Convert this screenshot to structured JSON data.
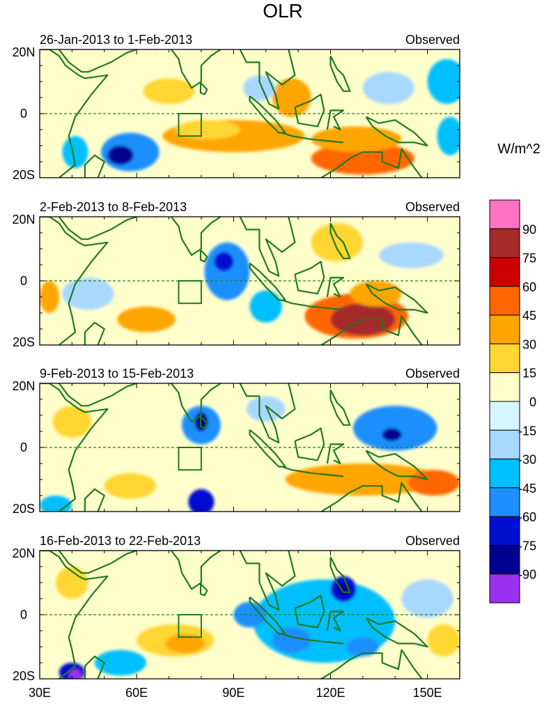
{
  "figure": {
    "title": "OLR",
    "units_label": "W/m^2",
    "region": {
      "lon_min": 30,
      "lon_max": 160,
      "lat_min": -20,
      "lat_max": 20
    },
    "lat_labels": [
      "20N",
      "0",
      "20S"
    ],
    "lon_ticks": [
      {
        "lon": 30,
        "label": "30E"
      },
      {
        "lon": 60,
        "label": "60E"
      },
      {
        "lon": 90,
        "label": "90E"
      },
      {
        "lon": 120,
        "label": "120E"
      },
      {
        "lon": 150,
        "label": "150E"
      }
    ],
    "box_region": {
      "lon_min": 73,
      "lon_max": 80,
      "lat_min": -7,
      "lat_max": 0
    },
    "coast_color": "#1f7a1f",
    "equator_color": "#1f7a1f"
  },
  "panels": [
    {
      "period": "26-Jan-2013 to 1-Feb-2013",
      "tag": "Observed",
      "blobs": [
        {
          "lon": 58,
          "lat": -12,
          "rx": 9,
          "ry": 6,
          "v": -45
        },
        {
          "lon": 55,
          "lat": -13,
          "rx": 4,
          "ry": 3,
          "v": -75
        },
        {
          "lon": 41,
          "lat": -12,
          "rx": 4,
          "ry": 5,
          "v": -30
        },
        {
          "lon": 90,
          "lat": -7,
          "rx": 22,
          "ry": 5,
          "v": 30
        },
        {
          "lon": 82,
          "lat": -5,
          "rx": 10,
          "ry": 3,
          "v": 15
        },
        {
          "lon": 70,
          "lat": 7,
          "rx": 8,
          "ry": 4,
          "v": 15
        },
        {
          "lon": 108,
          "lat": 5,
          "rx": 6,
          "ry": 6,
          "v": 30
        },
        {
          "lon": 130,
          "lat": -14,
          "rx": 16,
          "ry": 5,
          "v": 45
        },
        {
          "lon": 128,
          "lat": -8,
          "rx": 14,
          "ry": 4,
          "v": 30
        },
        {
          "lon": 156,
          "lat": 10,
          "rx": 6,
          "ry": 7,
          "v": -30
        },
        {
          "lon": 157,
          "lat": -7,
          "rx": 4,
          "ry": 6,
          "v": -30
        },
        {
          "lon": 138,
          "lat": 8,
          "rx": 8,
          "ry": 5,
          "v": -15
        },
        {
          "lon": 98,
          "lat": 8,
          "rx": 5,
          "ry": 4,
          "v": -15
        }
      ]
    },
    {
      "period": "2-Feb-2013 to 8-Feb-2013",
      "tag": "Observed",
      "blobs": [
        {
          "lon": 128,
          "lat": -11,
          "rx": 16,
          "ry": 7,
          "v": 45
        },
        {
          "lon": 130,
          "lat": -12,
          "rx": 10,
          "ry": 5,
          "v": 75
        },
        {
          "lon": 134,
          "lat": -4,
          "rx": 8,
          "ry": 4,
          "v": 30
        },
        {
          "lon": 88,
          "lat": 3,
          "rx": 7,
          "ry": 9,
          "v": -45
        },
        {
          "lon": 87,
          "lat": 6,
          "rx": 3,
          "ry": 3,
          "v": -60
        },
        {
          "lon": 100,
          "lat": -8,
          "rx": 5,
          "ry": 5,
          "v": -30
        },
        {
          "lon": 63,
          "lat": -12,
          "rx": 9,
          "ry": 4,
          "v": 30
        },
        {
          "lon": 45,
          "lat": -4,
          "rx": 8,
          "ry": 5,
          "v": -15
        },
        {
          "lon": 33,
          "lat": -5,
          "rx": 3,
          "ry": 5,
          "v": 30
        },
        {
          "lon": 122,
          "lat": 12,
          "rx": 8,
          "ry": 6,
          "v": 15
        },
        {
          "lon": 145,
          "lat": 8,
          "rx": 10,
          "ry": 4,
          "v": -15
        }
      ]
    },
    {
      "period": "9-Feb-2013 to 15-Feb-2013",
      "tag": "Observed",
      "blobs": [
        {
          "lon": 140,
          "lat": 6,
          "rx": 13,
          "ry": 7,
          "v": -45
        },
        {
          "lon": 139,
          "lat": 4,
          "rx": 3,
          "ry": 2,
          "v": -75
        },
        {
          "lon": 80,
          "lat": 7,
          "rx": 6,
          "ry": 6,
          "v": -45
        },
        {
          "lon": 80,
          "lat": 8,
          "rx": 2,
          "ry": 3,
          "v": -75
        },
        {
          "lon": 80,
          "lat": -17,
          "rx": 4,
          "ry": 4,
          "v": -60
        },
        {
          "lon": 130,
          "lat": -10,
          "rx": 24,
          "ry": 5,
          "v": 30
        },
        {
          "lon": 152,
          "lat": -11,
          "rx": 8,
          "ry": 4,
          "v": 45
        },
        {
          "lon": 58,
          "lat": -12,
          "rx": 8,
          "ry": 4,
          "v": 15
        },
        {
          "lon": 40,
          "lat": 8,
          "rx": 6,
          "ry": 5,
          "v": 15
        },
        {
          "lon": 35,
          "lat": -18,
          "rx": 5,
          "ry": 3,
          "v": -30
        },
        {
          "lon": 100,
          "lat": 12,
          "rx": 6,
          "ry": 4,
          "v": -15
        }
      ]
    },
    {
      "period": "16-Feb-2013 to 22-Feb-2013",
      "tag": "Observed",
      "blobs": [
        {
          "lon": 118,
          "lat": -2,
          "rx": 22,
          "ry": 13,
          "v": -30
        },
        {
          "lon": 124,
          "lat": 8,
          "rx": 4,
          "ry": 4,
          "v": -60
        },
        {
          "lon": 124,
          "lat": 8,
          "rx": 2,
          "ry": 2,
          "v": -75
        },
        {
          "lon": 108,
          "lat": -8,
          "rx": 6,
          "ry": 4,
          "v": -45
        },
        {
          "lon": 95,
          "lat": 0,
          "rx": 5,
          "ry": 4,
          "v": -45
        },
        {
          "lon": 130,
          "lat": -10,
          "rx": 5,
          "ry": 3,
          "v": -45
        },
        {
          "lon": 72,
          "lat": -8,
          "rx": 12,
          "ry": 5,
          "v": 15
        },
        {
          "lon": 75,
          "lat": -9,
          "rx": 6,
          "ry": 3,
          "v": 30
        },
        {
          "lon": 40,
          "lat": -18,
          "rx": 4,
          "ry": 3,
          "v": -60
        },
        {
          "lon": 41,
          "lat": -19,
          "rx": 2,
          "ry": 2,
          "v": -90
        },
        {
          "lon": 55,
          "lat": -15,
          "rx": 8,
          "ry": 4,
          "v": -30
        },
        {
          "lon": 40,
          "lat": 10,
          "rx": 5,
          "ry": 5,
          "v": 15
        },
        {
          "lon": 155,
          "lat": -8,
          "rx": 5,
          "ry": 5,
          "v": 15
        },
        {
          "lon": 150,
          "lat": 5,
          "rx": 8,
          "ry": 6,
          "v": -15
        }
      ]
    }
  ],
  "legend": {
    "labels": [
      "90",
      "75",
      "60",
      "45",
      "30",
      "15",
      "0",
      "-15",
      "-30",
      "-45",
      "-60",
      "-75",
      "-90"
    ],
    "levels": [
      {
        "v": 105,
        "color": "#ff73c2"
      },
      {
        "v": 90,
        "color": "#a52a2a"
      },
      {
        "v": 75,
        "color": "#cc0000"
      },
      {
        "v": 60,
        "color": "#ff6600"
      },
      {
        "v": 45,
        "color": "#ffa500"
      },
      {
        "v": 30,
        "color": "#ffd633"
      },
      {
        "v": 15,
        "color": "#ffffcc"
      },
      {
        "v": 0,
        "color": "#d6f5ff"
      },
      {
        "v": -15,
        "color": "#a8d8ff"
      },
      {
        "v": -30,
        "color": "#00bfff"
      },
      {
        "v": -45,
        "color": "#1e8fff"
      },
      {
        "v": -60,
        "color": "#0010d0"
      },
      {
        "v": -75,
        "color": "#000090"
      },
      {
        "v": -90,
        "color": "#9a30f0"
      }
    ]
  }
}
